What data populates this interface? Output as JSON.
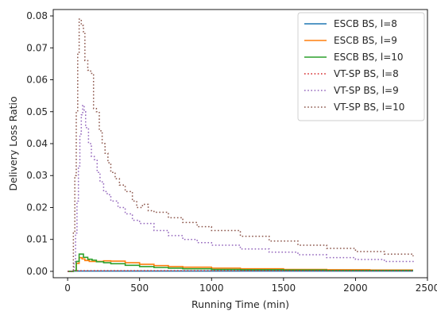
{
  "chart_data": {
    "type": "line",
    "title": "",
    "xlabel": "Running Time (min)",
    "ylabel": "Delivery Loss Ratio",
    "xlim": [
      -100,
      2500
    ],
    "ylim": [
      -0.002,
      0.082
    ],
    "x_ticks": [
      0,
      500,
      1000,
      1500,
      2000,
      2500
    ],
    "y_ticks": [
      0.0,
      0.01,
      0.02,
      0.03,
      0.04,
      0.05,
      0.06,
      0.07,
      0.08
    ],
    "x_tick_labels": [
      "0",
      "500",
      "1000",
      "1500",
      "2000",
      "2500"
    ],
    "y_tick_labels": [
      "0.00",
      "0.01",
      "0.02",
      "0.03",
      "0.04",
      "0.05",
      "0.06",
      "0.07",
      "0.08"
    ],
    "grid": false,
    "legend_position": "top-right",
    "series": [
      {
        "name": "ESCB BS, l=8",
        "color": "#1f77b4",
        "style": "solid",
        "step": true,
        "points": [
          [
            0,
            0.0
          ],
          [
            40,
            0.0001
          ],
          [
            2400,
            0.0001
          ]
        ]
      },
      {
        "name": "ESCB BS, l=9",
        "color": "#ff7f0e",
        "style": "solid",
        "step": true,
        "points": [
          [
            0,
            0.0
          ],
          [
            40,
            0.0002
          ],
          [
            60,
            0.0025
          ],
          [
            80,
            0.0043
          ],
          [
            100,
            0.0039
          ],
          [
            120,
            0.0034
          ],
          [
            150,
            0.0031
          ],
          [
            200,
            0.0031
          ],
          [
            250,
            0.0033
          ],
          [
            300,
            0.0032
          ],
          [
            400,
            0.0027
          ],
          [
            500,
            0.0022
          ],
          [
            600,
            0.0018
          ],
          [
            700,
            0.0015
          ],
          [
            800,
            0.0013
          ],
          [
            1000,
            0.001
          ],
          [
            1200,
            0.0008
          ],
          [
            1500,
            0.0006
          ],
          [
            1800,
            0.0005
          ],
          [
            2100,
            0.0004
          ],
          [
            2400,
            0.0004
          ]
        ]
      },
      {
        "name": "ESCB BS, l=10",
        "color": "#2ca02c",
        "style": "solid",
        "step": true,
        "points": [
          [
            0,
            0.0
          ],
          [
            40,
            0.0002
          ],
          [
            60,
            0.0031
          ],
          [
            80,
            0.0054
          ],
          [
            110,
            0.0044
          ],
          [
            140,
            0.0038
          ],
          [
            170,
            0.0035
          ],
          [
            200,
            0.003
          ],
          [
            250,
            0.0027
          ],
          [
            300,
            0.0024
          ],
          [
            400,
            0.0019
          ],
          [
            500,
            0.0015
          ],
          [
            600,
            0.0012
          ],
          [
            700,
            0.001
          ],
          [
            800,
            0.0008
          ],
          [
            1000,
            0.0006
          ],
          [
            1200,
            0.0005
          ],
          [
            1500,
            0.0004
          ],
          [
            1800,
            0.0003
          ],
          [
            2100,
            0.0003
          ],
          [
            2400,
            0.0003
          ]
        ]
      },
      {
        "name": "VT-SP BS, l=8",
        "color": "#d62728",
        "style": "dotted",
        "step": true,
        "points": [
          [
            0,
            0.0
          ],
          [
            40,
            0.0002
          ],
          [
            2400,
            0.0002
          ]
        ]
      },
      {
        "name": "VT-SP BS, l=9",
        "color": "#9467bd",
        "style": "dotted",
        "step": true,
        "points": [
          [
            0,
            0.0
          ],
          [
            30,
            0.0
          ],
          [
            45,
            0.003
          ],
          [
            55,
            0.012
          ],
          [
            65,
            0.022
          ],
          [
            75,
            0.033
          ],
          [
            85,
            0.043
          ],
          [
            95,
            0.049
          ],
          [
            105,
            0.052
          ],
          [
            115,
            0.05
          ],
          [
            125,
            0.045
          ],
          [
            145,
            0.04
          ],
          [
            165,
            0.036
          ],
          [
            185,
            0.035
          ],
          [
            205,
            0.031
          ],
          [
            225,
            0.028
          ],
          [
            250,
            0.025
          ],
          [
            275,
            0.024
          ],
          [
            300,
            0.022
          ],
          [
            350,
            0.02
          ],
          [
            400,
            0.018
          ],
          [
            450,
            0.016
          ],
          [
            500,
            0.015
          ],
          [
            600,
            0.0128
          ],
          [
            700,
            0.0112
          ],
          [
            800,
            0.01
          ],
          [
            900,
            0.009
          ],
          [
            1000,
            0.0082
          ],
          [
            1200,
            0.007
          ],
          [
            1400,
            0.006
          ],
          [
            1600,
            0.0052
          ],
          [
            1800,
            0.0043
          ],
          [
            2000,
            0.0037
          ],
          [
            2200,
            0.0031
          ],
          [
            2400,
            0.0026
          ]
        ]
      },
      {
        "name": "VT-SP BS, l=10",
        "color": "#8c564b",
        "style": "dotted",
        "step": true,
        "points": [
          [
            0,
            0.0
          ],
          [
            30,
            0.0
          ],
          [
            40,
            0.012
          ],
          [
            50,
            0.03
          ],
          [
            60,
            0.05
          ],
          [
            70,
            0.068
          ],
          [
            80,
            0.079
          ],
          [
            95,
            0.077
          ],
          [
            110,
            0.075
          ],
          [
            120,
            0.066
          ],
          [
            140,
            0.063
          ],
          [
            160,
            0.062
          ],
          [
            180,
            0.051
          ],
          [
            200,
            0.05
          ],
          [
            220,
            0.044
          ],
          [
            240,
            0.04
          ],
          [
            260,
            0.037
          ],
          [
            280,
            0.034
          ],
          [
            300,
            0.031
          ],
          [
            330,
            0.029
          ],
          [
            360,
            0.027
          ],
          [
            400,
            0.025
          ],
          [
            450,
            0.022
          ],
          [
            480,
            0.02
          ],
          [
            520,
            0.021
          ],
          [
            560,
            0.019
          ],
          [
            600,
            0.0185
          ],
          [
            700,
            0.0168
          ],
          [
            800,
            0.0153
          ],
          [
            900,
            0.014
          ],
          [
            1000,
            0.0128
          ],
          [
            1200,
            0.011
          ],
          [
            1400,
            0.0095
          ],
          [
            1600,
            0.0082
          ],
          [
            1800,
            0.0072
          ],
          [
            2000,
            0.0062
          ],
          [
            2200,
            0.0054
          ],
          [
            2400,
            0.0047
          ]
        ]
      }
    ]
  }
}
